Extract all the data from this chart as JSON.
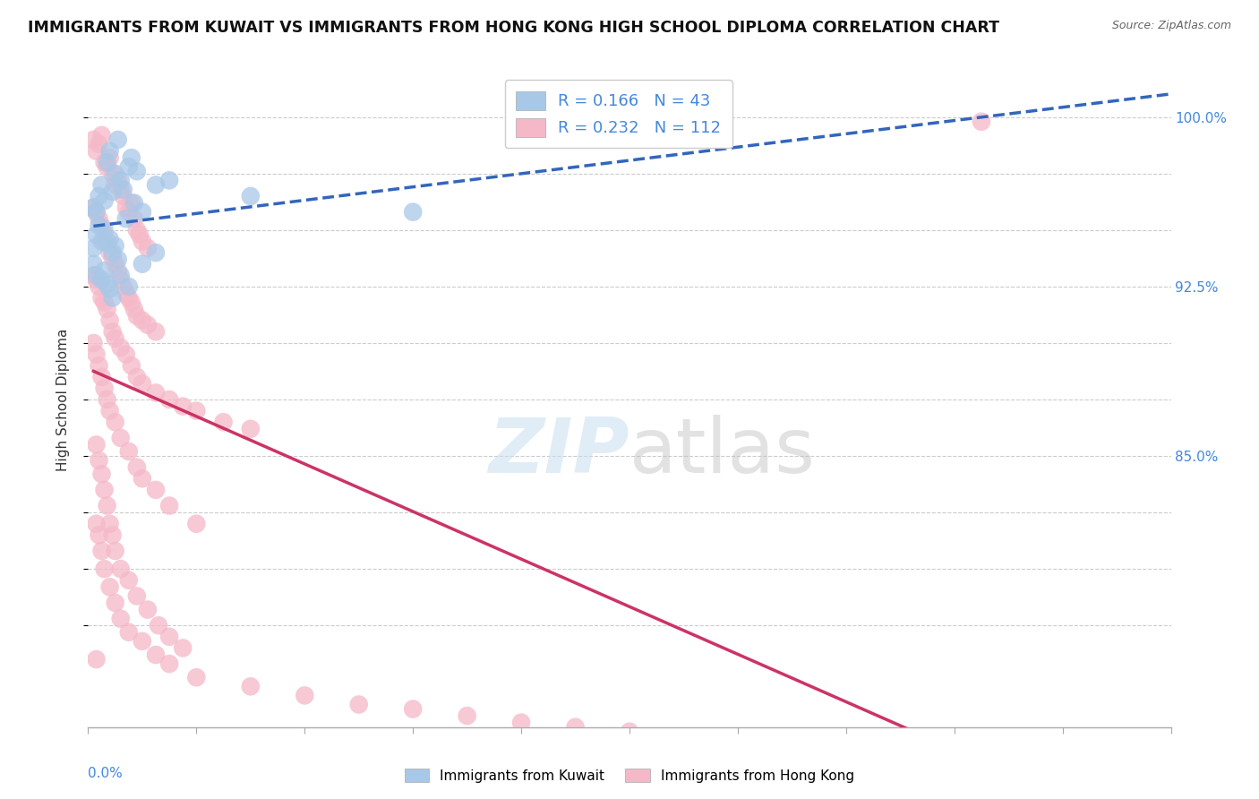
{
  "title": "IMMIGRANTS FROM KUWAIT VS IMMIGRANTS FROM HONG KONG HIGH SCHOOL DIPLOMA CORRELATION CHART",
  "source": "Source: ZipAtlas.com",
  "ylabel": "High School Diploma",
  "xlim": [
    0.0,
    0.4
  ],
  "ylim": [
    0.73,
    1.02
  ],
  "kuwait_color": "#a8c8e8",
  "hk_color": "#f5b8c8",
  "kuwait_line_color": "#3366bb",
  "hk_line_color": "#cc3366",
  "kuwait_R": 0.166,
  "kuwait_N": 43,
  "hk_R": 0.232,
  "hk_N": 112,
  "legend_label_kuwait": "Immigrants from Kuwait",
  "legend_label_hk": "Immigrants from Hong Kong",
  "watermark_zip": "ZIP",
  "watermark_atlas": "atlas",
  "background_color": "#ffffff",
  "title_fontsize": 12.5,
  "axis_label_fontsize": 11,
  "tick_fontsize": 11,
  "ytick_vals": [
    0.775,
    0.8,
    0.825,
    0.85,
    0.875,
    0.9,
    0.925,
    0.95,
    0.975,
    1.0
  ],
  "ytick_labels_right": [
    "",
    "",
    "",
    "85.0%",
    "",
    "",
    "92.5%",
    "",
    "",
    "100.0%"
  ],
  "grid_color": "#cccccc",
  "kuwait_scatter_x": [
    0.005,
    0.007,
    0.008,
    0.01,
    0.011,
    0.012,
    0.013,
    0.015,
    0.016,
    0.018,
    0.002,
    0.003,
    0.004,
    0.006,
    0.009,
    0.014,
    0.017,
    0.02,
    0.025,
    0.03,
    0.002,
    0.003,
    0.004,
    0.005,
    0.006,
    0.007,
    0.008,
    0.009,
    0.01,
    0.011,
    0.002,
    0.003,
    0.005,
    0.006,
    0.007,
    0.008,
    0.009,
    0.012,
    0.015,
    0.02,
    0.025,
    0.06,
    0.12
  ],
  "kuwait_scatter_y": [
    0.97,
    0.98,
    0.985,
    0.975,
    0.99,
    0.972,
    0.968,
    0.978,
    0.982,
    0.976,
    0.96,
    0.958,
    0.965,
    0.963,
    0.967,
    0.955,
    0.962,
    0.958,
    0.97,
    0.972,
    0.942,
    0.948,
    0.952,
    0.945,
    0.95,
    0.944,
    0.946,
    0.94,
    0.943,
    0.937,
    0.935,
    0.93,
    0.928,
    0.932,
    0.926,
    0.924,
    0.92,
    0.93,
    0.925,
    0.935,
    0.94,
    0.965,
    0.958
  ],
  "hk_scatter_x": [
    0.002,
    0.003,
    0.004,
    0.005,
    0.006,
    0.007,
    0.008,
    0.009,
    0.01,
    0.011,
    0.012,
    0.013,
    0.014,
    0.015,
    0.016,
    0.017,
    0.018,
    0.019,
    0.02,
    0.022,
    0.002,
    0.003,
    0.004,
    0.005,
    0.006,
    0.007,
    0.008,
    0.009,
    0.01,
    0.011,
    0.012,
    0.013,
    0.014,
    0.015,
    0.016,
    0.017,
    0.018,
    0.02,
    0.022,
    0.025,
    0.002,
    0.003,
    0.004,
    0.005,
    0.006,
    0.007,
    0.008,
    0.009,
    0.01,
    0.012,
    0.014,
    0.016,
    0.018,
    0.02,
    0.025,
    0.03,
    0.035,
    0.04,
    0.05,
    0.06,
    0.002,
    0.003,
    0.004,
    0.005,
    0.006,
    0.007,
    0.008,
    0.01,
    0.012,
    0.015,
    0.018,
    0.02,
    0.025,
    0.03,
    0.04,
    0.003,
    0.004,
    0.005,
    0.006,
    0.007,
    0.008,
    0.009,
    0.01,
    0.012,
    0.015,
    0.018,
    0.022,
    0.026,
    0.03,
    0.035,
    0.003,
    0.004,
    0.005,
    0.006,
    0.008,
    0.01,
    0.012,
    0.015,
    0.02,
    0.025,
    0.03,
    0.04,
    0.06,
    0.08,
    0.1,
    0.12,
    0.14,
    0.16,
    0.18,
    0.2,
    0.003,
    0.33
  ],
  "hk_scatter_y": [
    0.99,
    0.985,
    0.988,
    0.992,
    0.98,
    0.978,
    0.982,
    0.975,
    0.97,
    0.972,
    0.968,
    0.965,
    0.96,
    0.958,
    0.962,
    0.955,
    0.95,
    0.948,
    0.945,
    0.942,
    0.96,
    0.958,
    0.955,
    0.952,
    0.948,
    0.945,
    0.94,
    0.938,
    0.935,
    0.932,
    0.928,
    0.925,
    0.922,
    0.92,
    0.918,
    0.915,
    0.912,
    0.91,
    0.908,
    0.905,
    0.93,
    0.928,
    0.925,
    0.92,
    0.918,
    0.915,
    0.91,
    0.905,
    0.902,
    0.898,
    0.895,
    0.89,
    0.885,
    0.882,
    0.878,
    0.875,
    0.872,
    0.87,
    0.865,
    0.862,
    0.9,
    0.895,
    0.89,
    0.885,
    0.88,
    0.875,
    0.87,
    0.865,
    0.858,
    0.852,
    0.845,
    0.84,
    0.835,
    0.828,
    0.82,
    0.855,
    0.848,
    0.842,
    0.835,
    0.828,
    0.82,
    0.815,
    0.808,
    0.8,
    0.795,
    0.788,
    0.782,
    0.775,
    0.77,
    0.765,
    0.82,
    0.815,
    0.808,
    0.8,
    0.792,
    0.785,
    0.778,
    0.772,
    0.768,
    0.762,
    0.758,
    0.752,
    0.748,
    0.744,
    0.74,
    0.738,
    0.735,
    0.732,
    0.73,
    0.728,
    0.76,
    0.998
  ]
}
